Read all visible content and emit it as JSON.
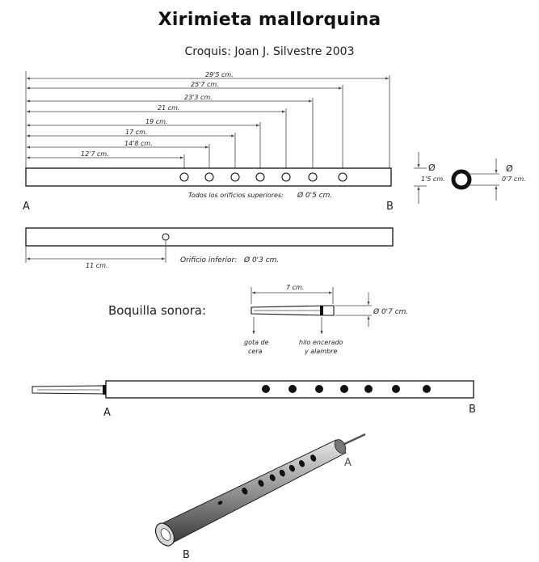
{
  "title": "Xirimieta mallorquina",
  "subtitle": "Croquis: Joan J. Silvestre 2003",
  "top_view": {
    "dimensions": [
      "29'5 cm.",
      "25'7 cm.",
      "23'3 cm.",
      "21 cm.",
      "19 cm.",
      "17 cm.",
      "14'8 cm.",
      "12'7 cm."
    ],
    "end_a": "A",
    "end_b": "B",
    "holes_note": "Todos los orificios superiores:",
    "holes_diameter": "Ø  0'5 cm.",
    "tube_width_symbol": "Ø",
    "tube_width": "1'5 cm.",
    "bore_symbol": "Ø",
    "bore_diameter": "0'7 cm."
  },
  "bottom_view": {
    "dimension": "11 cm.",
    "hole_note": "Orificio inferior:",
    "hole_diameter": "Ø  0'3 cm."
  },
  "reed": {
    "label": "Boquilla sonora:",
    "length": "7 cm.",
    "diameter": "Ø  0'7 cm.",
    "wax_label_line1": "gota de",
    "wax_label_line2": "cera",
    "thread_label_line1": "hilo encerado",
    "thread_label_line2": "y alambre"
  },
  "assembled": {
    "end_a": "A",
    "end_b": "B"
  },
  "perspective": {
    "end_a": "A",
    "end_b": "B"
  }
}
